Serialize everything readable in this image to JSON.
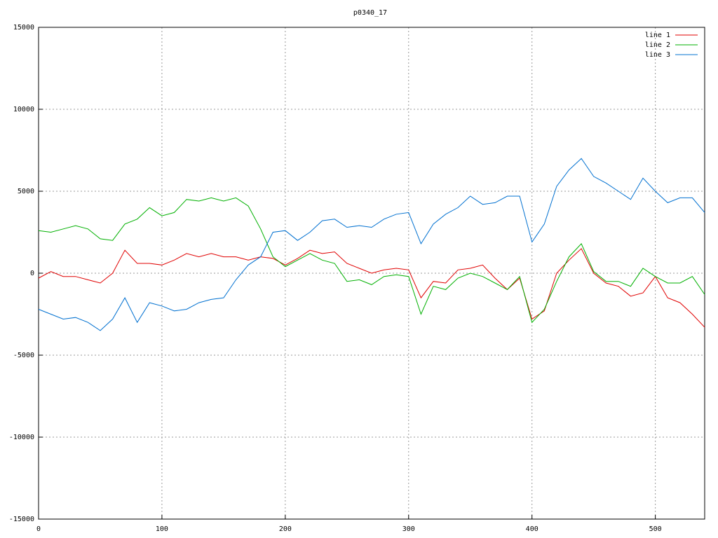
{
  "chart_data": {
    "type": "line",
    "title": "p0340_17",
    "x": [
      0,
      10,
      20,
      30,
      40,
      50,
      60,
      70,
      80,
      90,
      100,
      110,
      120,
      130,
      140,
      150,
      160,
      170,
      180,
      190,
      200,
      210,
      220,
      230,
      240,
      250,
      260,
      270,
      280,
      290,
      300,
      310,
      320,
      330,
      340,
      350,
      360,
      370,
      380,
      390,
      400,
      410,
      420,
      430,
      440,
      450,
      460,
      470,
      480,
      490,
      500,
      510,
      520,
      530,
      540
    ],
    "series": [
      {
        "name": "line 1",
        "color": "#e00000",
        "values": [
          -300,
          100,
          -200,
          -200,
          -400,
          -600,
          0,
          1400,
          600,
          600,
          500,
          800,
          1200,
          1000,
          1200,
          1000,
          1000,
          800,
          1000,
          900,
          500,
          900,
          1400,
          1200,
          1300,
          600,
          300,
          0,
          200,
          300,
          200,
          -1500,
          -500,
          -600,
          200,
          300,
          500,
          -300,
          -1000,
          -300,
          -2800,
          -2300,
          0,
          800,
          1500,
          0,
          -600,
          -800,
          -1400,
          -1200,
          -200,
          -1500,
          -1800,
          -2500,
          -3300
        ]
      },
      {
        "name": "line 2",
        "color": "#00b000",
        "values": [
          2600,
          2500,
          2700,
          2900,
          2700,
          2100,
          2000,
          3000,
          3300,
          4000,
          3500,
          3700,
          4500,
          4400,
          4600,
          4400,
          4600,
          4100,
          2700,
          1000,
          400,
          800,
          1200,
          800,
          600,
          -500,
          -400,
          -700,
          -200,
          -100,
          -200,
          -2500,
          -800,
          -1000,
          -300,
          0,
          -200,
          -600,
          -1000,
          -200,
          -3000,
          -2200,
          -500,
          1000,
          1800,
          100,
          -500,
          -500,
          -800,
          300,
          -200,
          -600,
          -600,
          -200,
          -1300
        ]
      },
      {
        "name": "line 3",
        "color": "#0070d0",
        "values": [
          -2200,
          -2500,
          -2800,
          -2700,
          -3000,
          -3500,
          -2800,
          -1500,
          -3000,
          -1800,
          -2000,
          -2300,
          -2200,
          -1800,
          -1600,
          -1500,
          -400,
          500,
          1000,
          2500,
          2600,
          2000,
          2500,
          3200,
          3300,
          2800,
          2900,
          2800,
          3300,
          3600,
          3700,
          1800,
          3000,
          3600,
          4000,
          4700,
          4200,
          4300,
          4700,
          4700,
          1900,
          3000,
          5300,
          6300,
          7000,
          5900,
          5500,
          5000,
          4500,
          5800,
          5000,
          4300,
          4600,
          4600,
          3700
        ]
      }
    ],
    "xlim": [
      0,
      540
    ],
    "xticks": [
      0,
      100,
      200,
      300,
      400,
      500
    ],
    "ylim": [
      -15000,
      15000
    ],
    "yticks": [
      -15000,
      -10000,
      -5000,
      0,
      5000,
      10000,
      15000
    ],
    "grid": true,
    "legend": "top-right"
  }
}
